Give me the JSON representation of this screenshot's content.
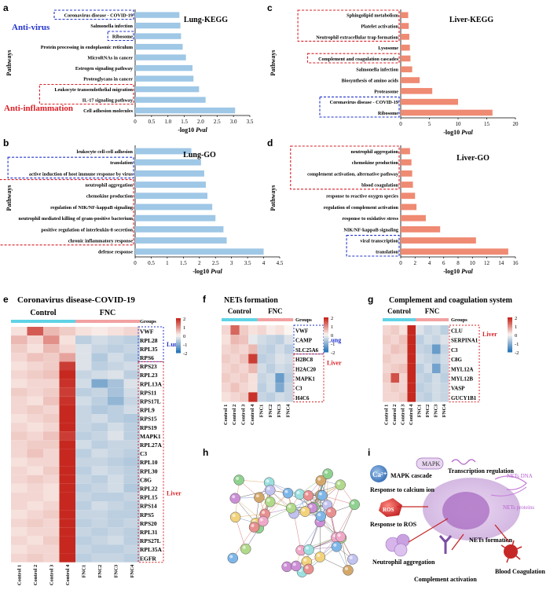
{
  "colors": {
    "blue_bar": "#9fc7e6",
    "red_bar": "#ef8a73",
    "box_blue": "#2233cc",
    "box_red": "#d81f26",
    "hm_red": "#c6281f",
    "hm_blue": "#2a76b8",
    "hm_white": "#fbf5f1"
  },
  "panels": {
    "a": {
      "letter": "a",
      "title": "Lung-KEGG",
      "xlabel": "-log10 Pval",
      "ylabel": "Pathways",
      "note_blue": "Anti-virus",
      "note_red": "Anti-inflammation"
    },
    "b": {
      "letter": "b",
      "title": "Lung-GO",
      "xlabel": "-log10 Pval",
      "ylabel": "Pathways"
    },
    "c": {
      "letter": "c",
      "title": "Liver-KEGG",
      "xlabel": "-log10 Pval",
      "ylabel": "Pathways"
    },
    "d": {
      "letter": "d",
      "title": "Liver-GO",
      "xlabel": "-log10 Pval",
      "ylabel": "Pathways"
    },
    "e": {
      "letter": "e",
      "title": "Coronavirus disease-COVID-19",
      "control": "Control",
      "fnc": "FNC",
      "groups": "Groups",
      "lung": "Lung",
      "liver": "Liver"
    },
    "f": {
      "letter": "f",
      "title": "NETs formation",
      "control": "Control",
      "fnc": "FNC",
      "groups": "Groups",
      "lung": "Lung",
      "liver": "Liver"
    },
    "g": {
      "letter": "g",
      "title": "Complement and coagulation system",
      "control": "Control",
      "fnc": "FNC",
      "groups": "Groups",
      "liver": "Liver"
    },
    "h": {
      "letter": "h"
    },
    "i": {
      "letter": "i",
      "labels": [
        "MAPK",
        "Transcription regulation",
        "MAPK cascade",
        "NETs DNA",
        "Ca²⁺",
        "Response to calcium ion",
        "NETs proteins",
        "ROS",
        "Response to ROS",
        "NETs formation",
        "Neutrophil aggregation",
        "Complement activation",
        "Blood Coagulation"
      ]
    }
  },
  "legend_ticks": [
    "2",
    "1",
    "0",
    "-1",
    "-2"
  ],
  "chart_data": [
    {
      "type": "bar",
      "id": "a",
      "title": "Lung-KEGG",
      "xlabel": "-log10 Pval",
      "ylabel": "Pathways",
      "categories": [
        "Coronavirus disease - COVID-19",
        "Salmonella infection",
        "Ribosome",
        "Protein processing in endoplasmic reticulum",
        "MicroRNAs in cancer",
        "Estrogen signaling pathway",
        "Proteoglycans in cancer",
        "Leukocyte transendothelial migration",
        "IL-17 signaling pathway",
        "Cell adhesion molecules"
      ],
      "values": [
        1.35,
        1.38,
        1.4,
        1.45,
        1.55,
        1.75,
        1.78,
        1.95,
        2.15,
        3.05
      ],
      "xlim": [
        0,
        3.5
      ],
      "ticks": [
        "0",
        "0.5",
        "1.0",
        "1.5",
        "2.0",
        "2.5",
        "3.0",
        "3.5"
      ]
    },
    {
      "type": "bar",
      "id": "b",
      "title": "Lung-GO",
      "xlabel": "-log10 Pval",
      "ylabel": "Pathways",
      "categories": [
        "leukocyte cell-cell adhesion",
        "translation",
        "active induction of host immune response by virus",
        "neutrophil aggregation",
        "chemokine production",
        "regulation of NIK/NF-kappaB signaling",
        "neutrophil mediated killing of gram-positive bacterium",
        "positive regulation of interleukin-8 secretion",
        "chronic inflammatory response",
        "defense response"
      ],
      "values": [
        1.75,
        2.05,
        2.15,
        2.2,
        2.25,
        2.4,
        2.5,
        2.75,
        2.85,
        4.0
      ],
      "xlim": [
        0,
        4.5
      ],
      "ticks": [
        "0",
        "0.5",
        "1",
        "1.5",
        "2",
        "2.5",
        "3",
        "3.5",
        "4",
        "4.5"
      ]
    },
    {
      "type": "bar",
      "id": "c",
      "title": "Liver-KEGG",
      "xlabel": "-log10 Pval",
      "ylabel": "Pathways",
      "categories": [
        "Sphingolipid metabolism",
        "Platelet activation",
        "Neutrophil extracellular trap formation",
        "Lysosome",
        "Complement and coagulation cascades",
        "Salmonella infection",
        "Biosynthesis of amino acids",
        "Proteasome",
        "Coronavirus disease - COVID-19",
        "Ribosome"
      ],
      "values": [
        1.3,
        1.4,
        1.5,
        1.6,
        1.7,
        2.0,
        3.3,
        5.5,
        10.0,
        16.0
      ],
      "xlim": [
        0,
        20
      ],
      "ticks": [
        "0",
        "5",
        "10",
        "15",
        "20"
      ]
    },
    {
      "type": "bar",
      "id": "d",
      "title": "Liver-GO",
      "xlabel": "-log10 Pval",
      "ylabel": "Pathways",
      "categories": [
        "neutrophil aggregation",
        "chemokine production",
        "complement activation, alternative pathway",
        "blood coagulation",
        "response to reactive oxygen species",
        "regulation of complement activation",
        "response to oxidative stress",
        "NIK/NF-kappaB signaling",
        "viral transcription",
        "translation"
      ],
      "values": [
        1.3,
        1.5,
        1.6,
        1.7,
        2.0,
        2.2,
        3.5,
        5.5,
        10.5,
        15.0
      ],
      "xlim": [
        0,
        16
      ],
      "ticks": [
        "0",
        "2",
        "4",
        "6",
        "8",
        "10",
        "12",
        "14",
        "16"
      ]
    },
    {
      "type": "heatmap",
      "id": "e",
      "title": "Coronavirus disease-COVID-19",
      "columns": [
        "Control 1",
        "Control 2",
        "Control 3",
        "Control 4",
        "FNC1",
        "FNC2",
        "FNC3",
        "FNC4"
      ],
      "rows": [
        "VWF",
        "RPL28",
        "RPL35",
        "RPS6",
        "RPS23",
        "RPL23",
        "RPL13A",
        "RPS11",
        "RPS17L",
        "RPL9",
        "RPS15",
        "RPS19",
        "MAPK1",
        "RPL27A",
        "C3",
        "RPL10",
        "RPL30",
        "C8G",
        "RPL22",
        "RPL15",
        "RPS14",
        "RPS5",
        "RPS20",
        "RPL31",
        "RPS27L",
        "RPL35A",
        "EGFR"
      ],
      "values": [
        [
          0.2,
          1.5,
          0.6,
          0.4,
          0.2,
          0.1,
          0.2,
          0.3
        ],
        [
          0.6,
          0.3,
          1.0,
          0.2,
          -0.6,
          -0.4,
          -0.5,
          -0.6
        ],
        [
          0.4,
          0.2,
          0.6,
          0.3,
          -0.3,
          -0.5,
          -0.6,
          -0.5
        ],
        [
          0.3,
          0.5,
          0.4,
          0.8,
          -0.3,
          -0.7,
          -0.4,
          -0.6
        ],
        [
          0.2,
          0.3,
          0.4,
          1.8,
          -0.3,
          -0.6,
          -0.5,
          -0.4
        ],
        [
          0.3,
          0.4,
          0.5,
          2.0,
          -0.5,
          -0.4,
          -0.3,
          -0.6
        ],
        [
          0.2,
          0.3,
          0.3,
          1.9,
          -0.4,
          -1.2,
          -0.8,
          -0.3
        ],
        [
          0.4,
          0.3,
          0.4,
          1.8,
          -0.6,
          -0.5,
          -0.8,
          -0.4
        ],
        [
          0.3,
          0.2,
          0.5,
          1.9,
          -0.4,
          -0.6,
          -1.0,
          -0.5
        ],
        [
          0.3,
          0.4,
          0.3,
          2.0,
          -0.5,
          -0.7,
          -0.6,
          -0.4
        ],
        [
          0.2,
          0.3,
          0.4,
          2.0,
          -0.5,
          -0.4,
          -0.6,
          -0.7
        ],
        [
          0.3,
          0.2,
          0.3,
          2.1,
          -0.5,
          -0.6,
          -0.4,
          -0.6
        ],
        [
          0.4,
          0.3,
          0.5,
          1.8,
          -0.6,
          -0.5,
          -0.3,
          -0.6
        ],
        [
          0.3,
          0.4,
          0.4,
          2.0,
          -0.4,
          -0.6,
          -0.5,
          -0.5
        ],
        [
          0.3,
          0.5,
          0.3,
          2.1,
          -0.6,
          -0.4,
          -0.5,
          -0.6
        ],
        [
          0.2,
          0.3,
          0.3,
          2.3,
          -0.5,
          -0.5,
          -0.6,
          -0.7
        ],
        [
          0.3,
          0.2,
          0.4,
          2.3,
          -0.6,
          -0.4,
          -0.5,
          -0.6
        ],
        [
          0.3,
          0.4,
          0.3,
          2.2,
          -0.5,
          -0.6,
          -0.4,
          -0.6
        ],
        [
          0.2,
          0.3,
          0.2,
          2.3,
          -0.6,
          -0.5,
          -0.4,
          -0.7
        ],
        [
          0.3,
          0.3,
          0.2,
          2.3,
          -0.5,
          -0.6,
          -0.6,
          -0.5
        ],
        [
          0.3,
          0.2,
          0.3,
          2.2,
          -0.6,
          -0.4,
          -0.5,
          -0.6
        ],
        [
          0.2,
          0.3,
          0.4,
          2.3,
          -0.5,
          -0.5,
          -0.6,
          -0.6
        ],
        [
          0.3,
          0.4,
          0.3,
          2.2,
          -0.6,
          -0.5,
          -0.6,
          -0.5
        ],
        [
          0.2,
          0.3,
          0.3,
          2.3,
          -0.5,
          -0.6,
          -0.5,
          -0.6
        ],
        [
          0.3,
          0.2,
          0.4,
          2.2,
          -0.6,
          -0.5,
          -0.4,
          -0.6
        ],
        [
          0.2,
          0.3,
          0.3,
          2.3,
          -0.5,
          -0.6,
          -0.6,
          -0.5
        ],
        [
          0.3,
          0.4,
          0.3,
          2.2,
          -0.6,
          -0.5,
          -0.5,
          -0.6
        ]
      ],
      "clim": [
        -2,
        2
      ]
    },
    {
      "type": "heatmap",
      "id": "f",
      "title": "NETs formation",
      "columns": [
        "Control 1",
        "Control 2",
        "Control 3",
        "Control 4",
        "FNC1",
        "FNC2",
        "FNC3",
        "FNC4"
      ],
      "rows": [
        "VWF",
        "CAMP",
        "SLC25A6",
        "H2BC8",
        "H2AC20",
        "MAPK1",
        "C3",
        "H4C6"
      ],
      "values": [
        [
          0.3,
          1.4,
          0.4,
          0.2,
          0.3,
          0.1,
          0.2,
          0.0
        ],
        [
          0.2,
          0.6,
          0.5,
          -0.2,
          -0.4,
          -0.5,
          -0.6,
          -0.3
        ],
        [
          0.3,
          0.4,
          0.3,
          0.6,
          -0.5,
          -0.6,
          -0.4,
          -0.6
        ],
        [
          0.4,
          0.3,
          0.5,
          1.8,
          -0.6,
          -0.5,
          -0.3,
          -0.4
        ],
        [
          0.3,
          0.4,
          0.3,
          0.6,
          -0.4,
          -0.6,
          -0.4,
          -0.5
        ],
        [
          0.4,
          0.3,
          0.4,
          0.2,
          -0.5,
          -0.4,
          -1.4,
          -0.6
        ],
        [
          0.3,
          0.5,
          0.3,
          0.2,
          -0.6,
          -0.4,
          -1.2,
          -0.5
        ],
        [
          0.2,
          0.3,
          0.4,
          1.9,
          -0.5,
          -0.6,
          -0.4,
          -0.5
        ]
      ],
      "clim": [
        -2,
        2
      ]
    },
    {
      "type": "heatmap",
      "id": "g",
      "title": "Complement and coagulation system",
      "columns": [
        "Control 1",
        "Control 2",
        "Control 3",
        "Control 4",
        "FNC1",
        "FNC2",
        "FNC3",
        "FNC4"
      ],
      "rows": [
        "CLU",
        "SERPINA1",
        "C3",
        "C8G",
        "MYL12A",
        "MYL12B",
        "VASP",
        "GUCY1B1"
      ],
      "values": [
        [
          0.3,
          0.4,
          0.2,
          2.0,
          -0.3,
          -0.5,
          -0.4,
          -0.6
        ],
        [
          0.4,
          0.3,
          0.5,
          2.1,
          -0.6,
          -0.4,
          -0.5,
          -0.3
        ],
        [
          0.3,
          0.5,
          0.4,
          2.0,
          -0.5,
          -0.6,
          -1.4,
          -0.5
        ],
        [
          0.4,
          0.3,
          0.3,
          2.1,
          -0.4,
          -0.5,
          -0.6,
          -0.4
        ],
        [
          0.3,
          0.4,
          0.5,
          2.0,
          -0.6,
          -0.4,
          -1.3,
          -0.5
        ],
        [
          0.4,
          1.6,
          0.3,
          2.1,
          -0.5,
          -0.6,
          -0.4,
          -0.6
        ],
        [
          0.3,
          0.4,
          0.3,
          2.0,
          -0.6,
          -0.5,
          -0.4,
          -0.5
        ],
        [
          0.3,
          0.3,
          0.4,
          2.0,
          -0.5,
          -0.6,
          -0.4,
          -0.5
        ]
      ],
      "clim": [
        -2,
        2
      ]
    }
  ]
}
